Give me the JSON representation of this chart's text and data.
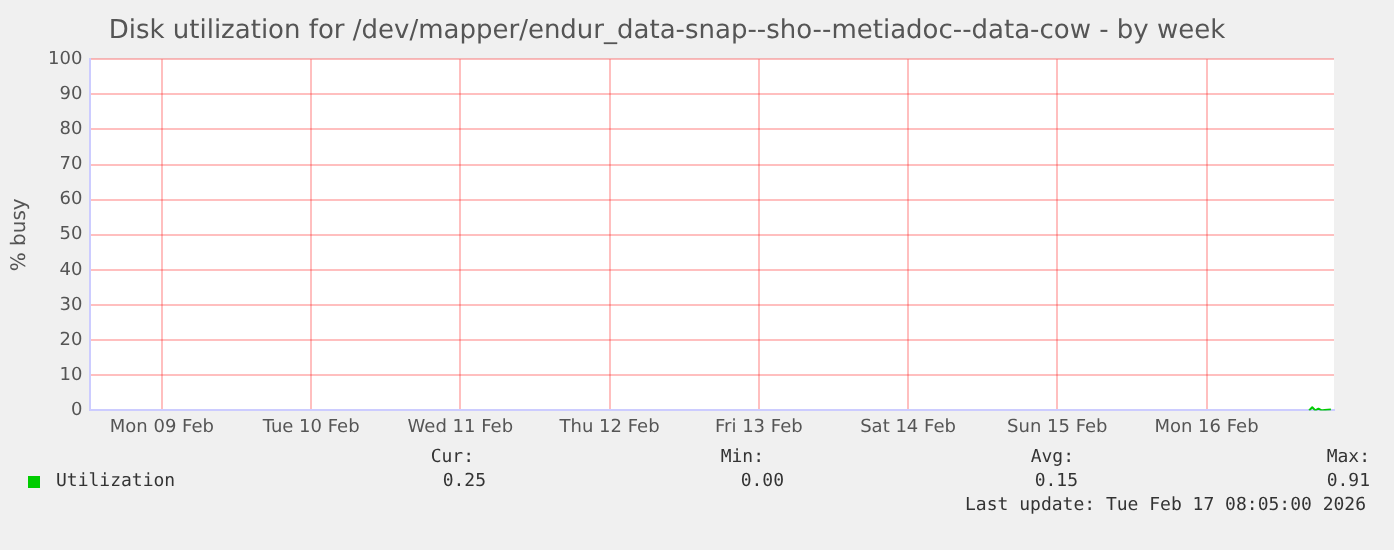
{
  "chart_data": {
    "type": "line",
    "title": "Disk utilization for /dev/mapper/endur_data-snap--sho--metiadoc--data-cow - by week",
    "ylabel": "% busy",
    "x": [
      "2026-02-17T04:30",
      "2026-02-17T05:00",
      "2026-02-17T05:30",
      "2026-02-17T06:00",
      "2026-02-17T06:30",
      "2026-02-17T07:00",
      "2026-02-17T07:30",
      "2026-02-17T08:00"
    ],
    "series": [
      {
        "name": "Utilization",
        "color": "#00cc00",
        "values": [
          0.0,
          0.91,
          0.0,
          0.5,
          0.0,
          0.1,
          0.2,
          0.25
        ]
      }
    ],
    "xlim": [
      "2026-02-09T00:30",
      "2026-02-17T08:30"
    ],
    "xticks": [
      {
        "value": "2026-02-09T12:00",
        "label": "Mon 09 Feb"
      },
      {
        "value": "2026-02-10T12:00",
        "label": "Tue 10 Feb"
      },
      {
        "value": "2026-02-11T12:00",
        "label": "Wed 11 Feb"
      },
      {
        "value": "2026-02-12T12:00",
        "label": "Thu 12 Feb"
      },
      {
        "value": "2026-02-13T12:00",
        "label": "Fri 13 Feb"
      },
      {
        "value": "2026-02-14T12:00",
        "label": "Sat 14 Feb"
      },
      {
        "value": "2026-02-15T12:00",
        "label": "Sun 15 Feb"
      },
      {
        "value": "2026-02-16T12:00",
        "label": "Mon 16 Feb"
      }
    ],
    "ylim": [
      0,
      100
    ],
    "yticks": [
      0,
      10,
      20,
      30,
      40,
      50,
      60,
      70,
      80,
      90,
      100
    ],
    "grid": true,
    "legend": "bottom left",
    "marker": "none",
    "line_style": "solid",
    "annotations": [
      "Cur:",
      "0.25",
      "Min:",
      "0.00",
      "Avg:",
      "0.15",
      "Max:",
      "0.91",
      "Last update: Tue Feb 17 08:05:00 2026"
    ]
  }
}
